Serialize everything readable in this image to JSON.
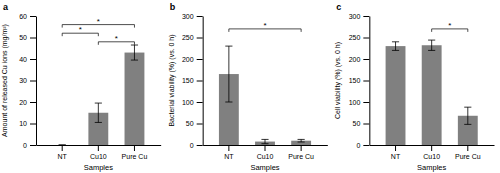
{
  "chart_data": [
    {
      "type": "bar",
      "title": "a",
      "categories": [
        "NT",
        "Cu10",
        "Pure Cu"
      ],
      "values": [
        0,
        15,
        43
      ],
      "errors": [
        0,
        4.5,
        3.5
      ],
      "ylabel": "Amount of released Cu ions (mg/m²)",
      "xlabel": "Samples",
      "ylim": [
        0,
        60
      ],
      "yticks": [
        0,
        10,
        20,
        30,
        40,
        50,
        60
      ],
      "color": "#808080",
      "annotations": [
        {
          "from": "NT",
          "to": "Cu10",
          "y": 52,
          "label": "*"
        },
        {
          "from": "NT",
          "to": "Pure Cu",
          "y": 56,
          "label": "*"
        },
        {
          "from": "Cu10",
          "to": "Pure Cu",
          "y": 48,
          "label": "*"
        }
      ]
    },
    {
      "type": "bar",
      "title": "b",
      "categories": [
        "NT",
        "Cu10",
        "Pure Cu"
      ],
      "values": [
        165,
        8,
        10
      ],
      "errors": [
        65,
        5,
        3
      ],
      "ylabel": "Bacterial viability (%) (vs. 0 h)",
      "xlabel": "Samples",
      "ylim": [
        0,
        300
      ],
      "yticks": [
        0,
        50,
        100,
        150,
        200,
        250,
        300
      ],
      "color": "#808080",
      "annotations": [
        {
          "from": "NT",
          "to": "Pure Cu",
          "y": 270,
          "label": "*"
        }
      ]
    },
    {
      "type": "bar",
      "title": "c",
      "categories": [
        "NT",
        "Cu10",
        "Pure Cu"
      ],
      "values": [
        230,
        232,
        68
      ],
      "errors": [
        10,
        12,
        20
      ],
      "ylabel": "Cell viability (%) (vs. 0 h)",
      "xlabel": "Samples",
      "ylim": [
        0,
        300
      ],
      "yticks": [
        0,
        50,
        100,
        150,
        200,
        250,
        300
      ],
      "color": "#808080",
      "annotations": [
        {
          "from": "Cu10",
          "to": "Pure Cu",
          "y": 270,
          "label": "*"
        }
      ]
    }
  ]
}
